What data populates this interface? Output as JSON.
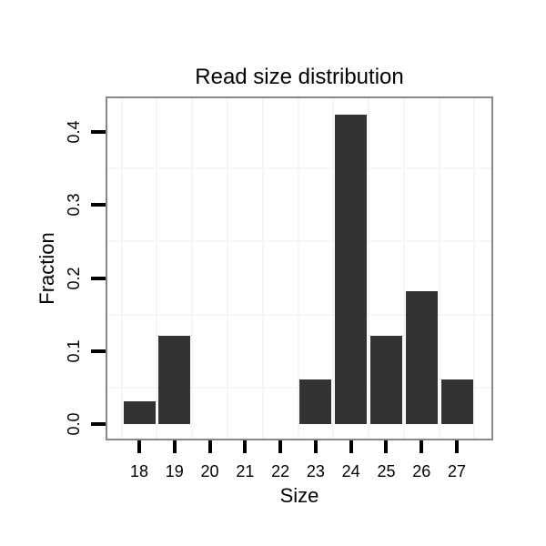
{
  "chart_data": {
    "type": "bar",
    "title": "Read size distribution",
    "xlabel": "Size",
    "ylabel": "Fraction",
    "categories": [
      18,
      19,
      20,
      21,
      22,
      23,
      24,
      25,
      26,
      27
    ],
    "values": [
      0.0303,
      0.1212,
      0,
      0,
      0,
      0.0606,
      0.4242,
      0.1212,
      0.1818,
      0.0606
    ],
    "x_tick_labels": [
      "18",
      "19",
      "20",
      "21",
      "22",
      "23",
      "24",
      "25",
      "26",
      "27"
    ],
    "y_ticks": [
      {
        "v": 0.0,
        "label": "0.0"
      },
      {
        "v": 0.1,
        "label": "0.1"
      },
      {
        "v": 0.2,
        "label": "0.2"
      },
      {
        "v": 0.3,
        "label": "0.3"
      },
      {
        "v": 0.4,
        "label": "0.4"
      }
    ],
    "ylim": [
      0,
      0.4455
    ],
    "xlim": [
      17.05,
      27.95
    ],
    "minor_gridlines_x": [
      17.5,
      18.5,
      19.5,
      20.5,
      21.5,
      22.5,
      23.5,
      24.5,
      25.5,
      26.5,
      27.5
    ],
    "minor_gridlines_y": [
      0.05,
      0.15,
      0.25,
      0.35
    ],
    "grid": "minor-only",
    "legend": "none",
    "colors": {
      "bar": "#333333",
      "panel_border": "#888888",
      "gridline": "#f6f6f6",
      "tick_mark": "#000000",
      "text": "#000000",
      "background": "#ffffff"
    }
  }
}
